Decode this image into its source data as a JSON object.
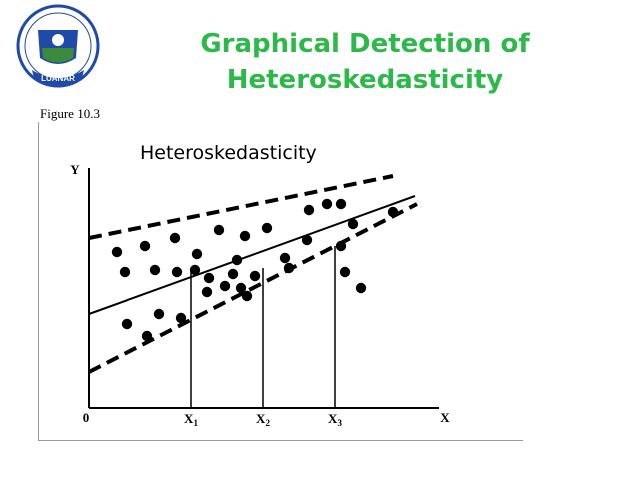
{
  "slide": {
    "title_line1": "Graphical Detection of",
    "title_line2": "Heteroskedasticity",
    "logo_text": "LUANAR",
    "figure_label": "Figure 10.3",
    "subtitle": "Heteroskedasticity"
  },
  "colors": {
    "title": "#2db84a",
    "logo_blue": "#1f4aa8",
    "logo_green": "#3c8a3c"
  },
  "chart_data": {
    "type": "scatter",
    "title": "",
    "xlabel": "X",
    "ylabel": "Y",
    "origin_label": "0",
    "x_ticks": [
      {
        "label": "X1",
        "base": "X",
        "sub": "1",
        "x": 5.1
      },
      {
        "label": "X2",
        "base": "X",
        "sub": "2",
        "x": 8.7
      },
      {
        "label": "X3",
        "base": "X",
        "sub": "3",
        "x": 12.3
      }
    ],
    "xlim": [
      0,
      17.5
    ],
    "ylim": [
      0,
      12
    ],
    "points": [
      [
        1.4,
        7.8
      ],
      [
        1.8,
        6.8
      ],
      [
        2.8,
        8.1
      ],
      [
        3.3,
        6.9
      ],
      [
        4.3,
        8.5
      ],
      [
        4.4,
        6.8
      ],
      [
        5.3,
        6.9
      ],
      [
        5.4,
        7.7
      ],
      [
        5.9,
        5.8
      ],
      [
        6.5,
        8.9
      ],
      [
        6.8,
        6.1
      ],
      [
        7.2,
        6.7
      ],
      [
        7.4,
        7.4
      ],
      [
        7.6,
        6.0
      ],
      [
        7.8,
        8.6
      ],
      [
        7.9,
        5.6
      ],
      [
        8.3,
        6.6
      ],
      [
        8.9,
        9.0
      ],
      [
        9.8,
        7.5
      ],
      [
        10,
        7.0
      ],
      [
        10.9,
        8.4
      ],
      [
        11,
        9.9
      ],
      [
        11.9,
        10.2
      ],
      [
        12.6,
        8.1
      ],
      [
        12.8,
        6.8
      ],
      [
        13.2,
        9.2
      ],
      [
        13.6,
        6.0
      ],
      [
        12.6,
        10.2
      ],
      [
        15.2,
        9.8
      ],
      [
        3.5,
        4.7
      ],
      [
        1.9,
        4.2
      ],
      [
        2.9,
        3.6
      ],
      [
        4.6,
        4.5
      ],
      [
        6.0,
        6.5
      ]
    ],
    "lines": [
      {
        "name": "",
        "style": "solid",
        "x": [
          0,
          16.3
        ],
        "y": [
          4.7,
          10.6
        ]
      },
      {
        "name": "",
        "style": "dashed",
        "x": [
          0,
          15.2
        ],
        "y": [
          8.5,
          11.6
        ]
      },
      {
        "name": "",
        "style": "dashed",
        "x": [
          0,
          16.4
        ],
        "y": [
          1.8,
          10.2
        ]
      }
    ],
    "vertical_markers": [
      {
        "x": 5.1,
        "y": 6.9
      },
      {
        "x": 8.7,
        "y": 7.0
      },
      {
        "x": 12.3,
        "y": 8.1
      }
    ],
    "grid": false,
    "legend": "none"
  }
}
